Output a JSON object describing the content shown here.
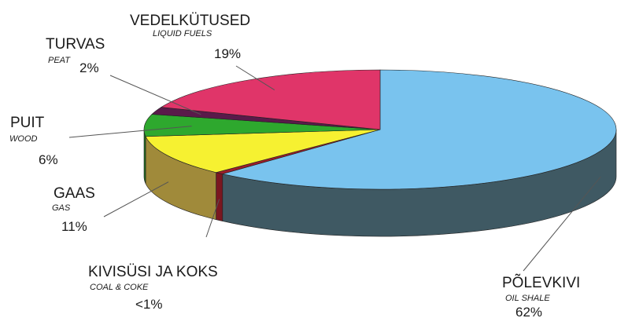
{
  "chart_data": {
    "type": "pie",
    "title": "",
    "slices": [
      {
        "name": "PÕLEVKIVI",
        "subname": "OIL SHALE",
        "value": 62,
        "label": "62%",
        "color": "#79c3ee",
        "side": "#3f5963"
      },
      {
        "name": "KIVISÜSI JA KOKS",
        "subname": "COAL & COKE",
        "value": 0.6,
        "label": "<1%",
        "color": "#9c1e2a",
        "side": "#7a1720"
      },
      {
        "name": "GAAS",
        "subname": "GAS",
        "value": 11,
        "label": "11%",
        "color": "#f6f131",
        "side": "#a08a3a"
      },
      {
        "name": "PUIT",
        "subname": "WOOD",
        "value": 6,
        "label": "6%",
        "color": "#2ea82e",
        "side": "#1f6e1f"
      },
      {
        "name": "TURVAS",
        "subname": "PEAT",
        "value": 2,
        "label": "2%",
        "color": "#5a1a4a",
        "side": "#3b1131"
      },
      {
        "name": "VEDELKÜTUSED",
        "subname": "LIQUID FUELS",
        "value": 19,
        "label": "19%",
        "color": "#e03569",
        "side": "#a02046"
      }
    ]
  }
}
